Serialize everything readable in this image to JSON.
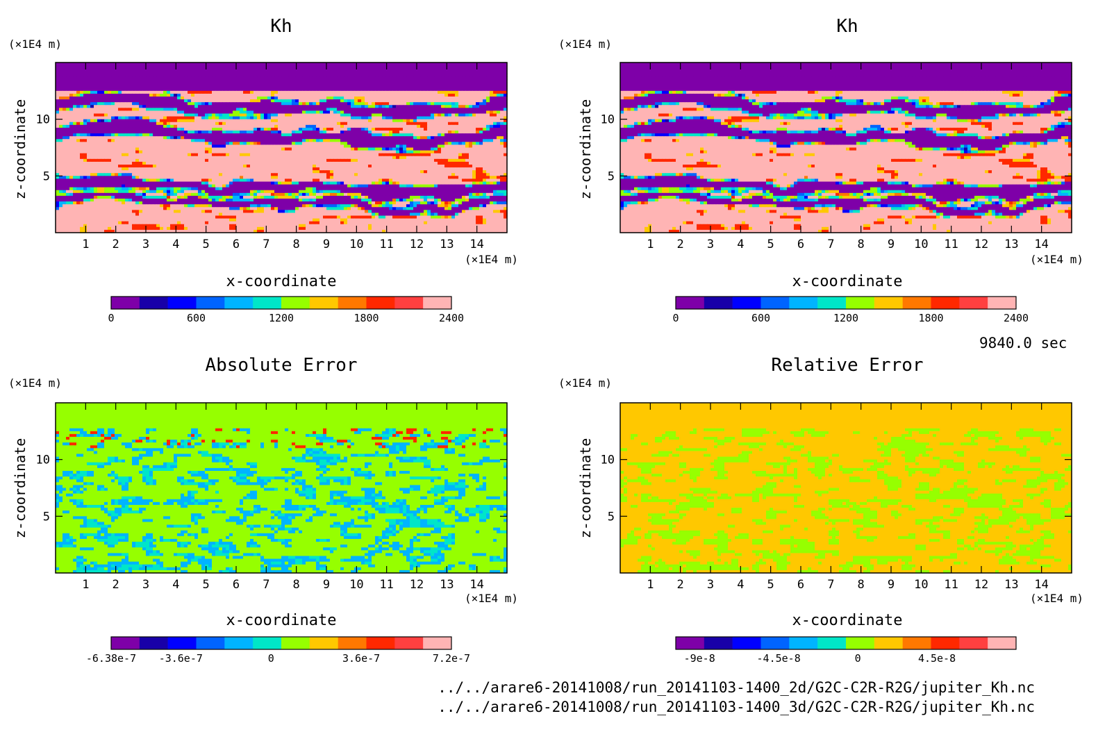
{
  "time_label": "9840.0 sec",
  "footer": {
    "file1": "../../arare6-20141008/run_20141103-1400_2d/G2C-C2R-R2G/jupiter_Kh.nc",
    "file2": "../../arare6-20141008/run_20141103-1400_3d/G2C-C2R-R2G/jupiter_Kh.nc"
  },
  "chart_data": [
    {
      "type": "heatmap",
      "title": "Kh",
      "xlabel": "x-coordinate",
      "ylabel": "z-coordinate",
      "x_unit": "(×1E4 m)",
      "y_unit": "(×1E4 m)",
      "xlim": [
        0,
        15
      ],
      "ylim": [
        0,
        15
      ],
      "xticks": [
        1,
        2,
        3,
        4,
        5,
        6,
        7,
        8,
        9,
        10,
        11,
        12,
        13,
        14
      ],
      "yticks": [
        5,
        10
      ],
      "field": "kh",
      "colorbar": {
        "colors": [
          "#7e00a8",
          "#1800a8",
          "#0000ff",
          "#0064ff",
          "#00b4ff",
          "#00e6c8",
          "#96ff00",
          "#ffc800",
          "#ff7800",
          "#ff2800",
          "#ff4040",
          "#ffb4b4"
        ],
        "min": 0,
        "max": 2400,
        "tick_labels": [
          "0",
          "600",
          "1200",
          "1800",
          "2400"
        ],
        "tick_values": [
          0,
          600,
          1200,
          1800,
          2400
        ]
      }
    },
    {
      "type": "heatmap",
      "title": "Kh",
      "xlabel": "x-coordinate",
      "ylabel": "z-coordinate",
      "x_unit": "(×1E4 m)",
      "y_unit": "(×1E4 m)",
      "xlim": [
        0,
        15
      ],
      "ylim": [
        0,
        15
      ],
      "xticks": [
        1,
        2,
        3,
        4,
        5,
        6,
        7,
        8,
        9,
        10,
        11,
        12,
        13,
        14
      ],
      "yticks": [
        5,
        10
      ],
      "field": "kh",
      "colorbar": {
        "colors": [
          "#7e00a8",
          "#1800a8",
          "#0000ff",
          "#0064ff",
          "#00b4ff",
          "#00e6c8",
          "#96ff00",
          "#ffc800",
          "#ff7800",
          "#ff2800",
          "#ff4040",
          "#ffb4b4"
        ],
        "min": 0,
        "max": 2400,
        "tick_labels": [
          "0",
          "600",
          "1200",
          "1800",
          "2400"
        ],
        "tick_values": [
          0,
          600,
          1200,
          1800,
          2400
        ]
      }
    },
    {
      "type": "heatmap",
      "title": "Absolute Error",
      "xlabel": "x-coordinate",
      "ylabel": "z-coordinate",
      "x_unit": "(×1E4 m)",
      "y_unit": "(×1E4 m)",
      "xlim": [
        0,
        15
      ],
      "ylim": [
        0,
        15
      ],
      "xticks": [
        1,
        2,
        3,
        4,
        5,
        6,
        7,
        8,
        9,
        10,
        11,
        12,
        13,
        14
      ],
      "yticks": [
        5,
        10
      ],
      "field": "abs",
      "colorbar": {
        "colors": [
          "#7e00a8",
          "#1800a8",
          "#0000ff",
          "#0064ff",
          "#00b4ff",
          "#00e6c8",
          "#96ff00",
          "#ffc800",
          "#ff7800",
          "#ff2800",
          "#ff4040",
          "#ffb4b4"
        ],
        "min": -6.38e-07,
        "max": 7.2e-07,
        "tick_labels": [
          "-6.38e-7",
          "-3.6e-7",
          "0",
          "3.6e-7",
          "7.2e-7"
        ],
        "tick_values": [
          -6.38e-07,
          -3.6e-07,
          0,
          3.6e-07,
          7.2e-07
        ]
      }
    },
    {
      "type": "heatmap",
      "title": "Relative Error",
      "xlabel": "x-coordinate",
      "ylabel": "z-coordinate",
      "x_unit": "(×1E4 m)",
      "y_unit": "(×1E4 m)",
      "xlim": [
        0,
        15
      ],
      "ylim": [
        0,
        15
      ],
      "xticks": [
        1,
        2,
        3,
        4,
        5,
        6,
        7,
        8,
        9,
        10,
        11,
        12,
        13,
        14
      ],
      "yticks": [
        5,
        10
      ],
      "field": "rel",
      "colorbar": {
        "colors": [
          "#7e00a8",
          "#1800a8",
          "#0000ff",
          "#0064ff",
          "#00b4ff",
          "#00e6c8",
          "#96ff00",
          "#ffc800",
          "#ff7800",
          "#ff2800",
          "#ff4040",
          "#ffb4b4"
        ],
        "min": -1.035e-07,
        "max": 9e-08,
        "tick_labels": [
          "-9e-8",
          "-4.5e-8",
          "0",
          "4.5e-8"
        ],
        "tick_values": [
          -9e-08,
          -4.5e-08,
          0,
          4.5e-08
        ]
      }
    }
  ]
}
